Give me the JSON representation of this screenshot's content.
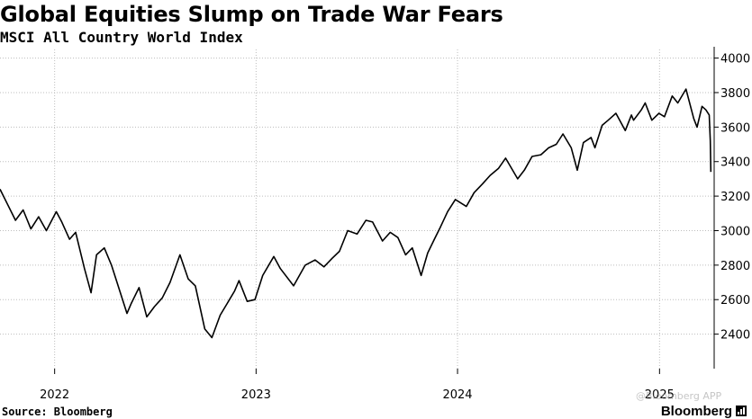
{
  "header": {
    "title": "Global Equities Slump on Trade War Fears",
    "subtitle": "MSCI All Country World Index"
  },
  "footer": {
    "source": "Source: Bloomberg",
    "brand": "Bloomberg",
    "watermark": "@Bloomberg APP"
  },
  "colors": {
    "line": "#000000",
    "grid": "#bdbdbd",
    "axis": "#000000",
    "background": "#ffffff"
  },
  "icons": {
    "brand_mark": "bar-chart-icon"
  },
  "chart_data": {
    "type": "line",
    "title": "Global Equities Slump on Trade War Fears",
    "subtitle": "MSCI All Country World Index",
    "xlabel": "",
    "ylabel": "",
    "x_axis": "date",
    "ylim": [
      2200,
      4050
    ],
    "xlim": [
      "2021-09-24",
      "2025-04-10"
    ],
    "y_ticks": [
      2400,
      2600,
      2800,
      3000,
      3200,
      3400,
      3600,
      3800,
      4000
    ],
    "x_tick_labels": [
      {
        "date": "2022-01-01",
        "label": "2022"
      },
      {
        "date": "2023-01-01",
        "label": "2023"
      },
      {
        "date": "2024-01-01",
        "label": "2024"
      },
      {
        "date": "2025-01-01",
        "label": "2025"
      }
    ],
    "grid": true,
    "legend": "none",
    "y_axis_side": "right",
    "series": [
      {
        "values": [
          [
            "2021-09-24",
            3240
          ],
          [
            "2021-10-08",
            3150
          ],
          [
            "2021-10-22",
            3060
          ],
          [
            "2021-11-05",
            3120
          ],
          [
            "2021-11-19",
            3010
          ],
          [
            "2021-12-03",
            3080
          ],
          [
            "2021-12-17",
            3000
          ],
          [
            "2022-01-04",
            3110
          ],
          [
            "2022-01-14",
            3050
          ],
          [
            "2022-01-28",
            2950
          ],
          [
            "2022-02-08",
            2990
          ],
          [
            "2022-02-24",
            2780
          ],
          [
            "2022-03-08",
            2640
          ],
          [
            "2022-03-18",
            2860
          ],
          [
            "2022-04-01",
            2900
          ],
          [
            "2022-04-14",
            2800
          ],
          [
            "2022-04-29",
            2650
          ],
          [
            "2022-05-12",
            2520
          ],
          [
            "2022-05-20",
            2580
          ],
          [
            "2022-06-03",
            2670
          ],
          [
            "2022-06-17",
            2500
          ],
          [
            "2022-07-01",
            2560
          ],
          [
            "2022-07-15",
            2610
          ],
          [
            "2022-07-29",
            2700
          ],
          [
            "2022-08-16",
            2860
          ],
          [
            "2022-08-31",
            2720
          ],
          [
            "2022-09-13",
            2680
          ],
          [
            "2022-09-30",
            2430
          ],
          [
            "2022-10-13",
            2380
          ],
          [
            "2022-10-28",
            2510
          ],
          [
            "2022-11-10",
            2580
          ],
          [
            "2022-11-23",
            2650
          ],
          [
            "2022-12-01",
            2710
          ],
          [
            "2022-12-16",
            2590
          ],
          [
            "2022-12-30",
            2600
          ],
          [
            "2023-01-13",
            2740
          ],
          [
            "2023-02-02",
            2850
          ],
          [
            "2023-02-14",
            2780
          ],
          [
            "2023-03-10",
            2680
          ],
          [
            "2023-03-31",
            2800
          ],
          [
            "2023-04-18",
            2830
          ],
          [
            "2023-05-04",
            2790
          ],
          [
            "2023-05-19",
            2840
          ],
          [
            "2023-06-01",
            2880
          ],
          [
            "2023-06-16",
            3000
          ],
          [
            "2023-07-03",
            2980
          ],
          [
            "2023-07-19",
            3060
          ],
          [
            "2023-07-31",
            3050
          ],
          [
            "2023-08-18",
            2940
          ],
          [
            "2023-09-01",
            2990
          ],
          [
            "2023-09-15",
            2960
          ],
          [
            "2023-09-29",
            2860
          ],
          [
            "2023-10-11",
            2900
          ],
          [
            "2023-10-27",
            2740
          ],
          [
            "2023-11-08",
            2870
          ],
          [
            "2023-11-20",
            2950
          ],
          [
            "2023-12-01",
            3020
          ],
          [
            "2023-12-14",
            3110
          ],
          [
            "2023-12-28",
            3180
          ],
          [
            "2024-01-17",
            3140
          ],
          [
            "2024-01-31",
            3220
          ],
          [
            "2024-02-15",
            3270
          ],
          [
            "2024-02-29",
            3320
          ],
          [
            "2024-03-15",
            3360
          ],
          [
            "2024-03-28",
            3420
          ],
          [
            "2024-04-19",
            3300
          ],
          [
            "2024-05-01",
            3350
          ],
          [
            "2024-05-15",
            3430
          ],
          [
            "2024-05-31",
            3440
          ],
          [
            "2024-06-14",
            3480
          ],
          [
            "2024-06-28",
            3500
          ],
          [
            "2024-07-10",
            3560
          ],
          [
            "2024-07-25",
            3480
          ],
          [
            "2024-08-05",
            3350
          ],
          [
            "2024-08-16",
            3510
          ],
          [
            "2024-08-30",
            3540
          ],
          [
            "2024-09-06",
            3480
          ],
          [
            "2024-09-19",
            3610
          ],
          [
            "2024-09-30",
            3640
          ],
          [
            "2024-10-14",
            3680
          ],
          [
            "2024-10-31",
            3580
          ],
          [
            "2024-11-11",
            3670
          ],
          [
            "2024-11-15",
            3640
          ],
          [
            "2024-11-29",
            3700
          ],
          [
            "2024-12-06",
            3740
          ],
          [
            "2024-12-18",
            3640
          ],
          [
            "2024-12-31",
            3680
          ],
          [
            "2025-01-10",
            3660
          ],
          [
            "2025-01-24",
            3780
          ],
          [
            "2025-02-03",
            3740
          ],
          [
            "2025-02-18",
            3820
          ],
          [
            "2025-03-04",
            3650
          ],
          [
            "2025-03-10",
            3600
          ],
          [
            "2025-03-19",
            3720
          ],
          [
            "2025-03-26",
            3700
          ],
          [
            "2025-04-01",
            3670
          ],
          [
            "2025-04-03",
            3520
          ],
          [
            "2025-04-04",
            3340
          ]
        ]
      }
    ]
  }
}
